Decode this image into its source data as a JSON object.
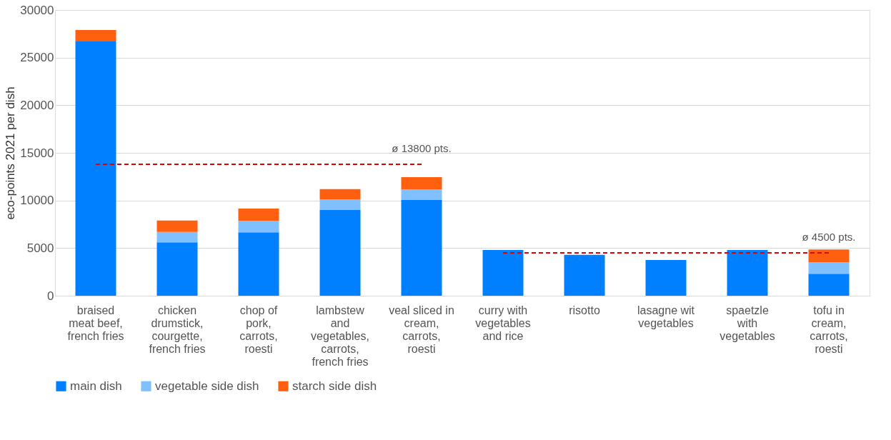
{
  "chart_data": {
    "type": "bar",
    "stacked": true,
    "ylabel": "eco-points 2021 per dish",
    "categories": [
      "braised\nmeat beef,\nfrench fries",
      "chicken\ndrumstick,\ncourgette,\nfrench fries",
      "chop of\npork,\ncarrots,\nroesti",
      "lambstew\nand\nvegetables,\ncarrots,\nfrench fries",
      "veal sliced in\ncream,\ncarrots,\nroesti",
      "curry with\nvegetables\nand rice",
      "risotto",
      "lasagne wit\nvegetables",
      "spaetzle\nwith\nvegetables",
      "tofu in\ncream,\ncarrots,\nroesti"
    ],
    "series": [
      {
        "name": "main dish",
        "color": "#0080ff",
        "values": [
          26700,
          5600,
          6650,
          9000,
          10050,
          4800,
          4300,
          3750,
          4800,
          2300
        ]
      },
      {
        "name": "vegetable side dish",
        "color": "#80c0ff",
        "values": [
          null,
          1100,
          1200,
          1100,
          1100,
          null,
          null,
          null,
          null,
          1200
        ]
      },
      {
        "name": "starch side dish",
        "color": "#ff6010",
        "values": [
          1200,
          1200,
          1300,
          1100,
          1300,
          null,
          null,
          null,
          null,
          1350
        ]
      },
      {
        "type": "line",
        "color": "#e00000",
        "line_style": "dashed",
        "x": [
          "braised\nmeat beef,\nfrench fries",
          "chicken\ndrumstick,\ncourgette,\nfrench fries",
          "chop of\npork,\ncarrots,\nroesti",
          "lambstew\nand\nvegetables,\ncarrots,\nfrench fries",
          "veal sliced in\ncream,\ncarrots,\nroesti"
        ],
        "values": [
          13800,
          13800,
          13800,
          13800,
          13800
        ]
      },
      {
        "type": "line",
        "color": "#e00000",
        "line_style": "dashed",
        "x": [
          "curry with\nvegetables\nand rice",
          "risotto",
          "lasagne wit\nvegetables",
          "spaetzle\nwith\nvegetables",
          "tofu in\ncream,\ncarrots,\nroesti"
        ],
        "values": [
          4500,
          4500,
          4500,
          4500,
          4500
        ]
      }
    ],
    "annotations": [
      {
        "text": "ø 13800 pts.",
        "x": "veal sliced in\ncream,\ncarrots,\nroesti",
        "y": 13800
      },
      {
        "text": "ø 4500 pts.",
        "x": "tofu in\ncream,\ncarrots,\nroesti",
        "y": 4500
      }
    ],
    "ylim": [
      0,
      30000
    ],
    "yticks": [
      0,
      5000,
      10000,
      15000,
      20000,
      25000,
      30000
    ],
    "grid": "y",
    "legend": "bottom"
  }
}
